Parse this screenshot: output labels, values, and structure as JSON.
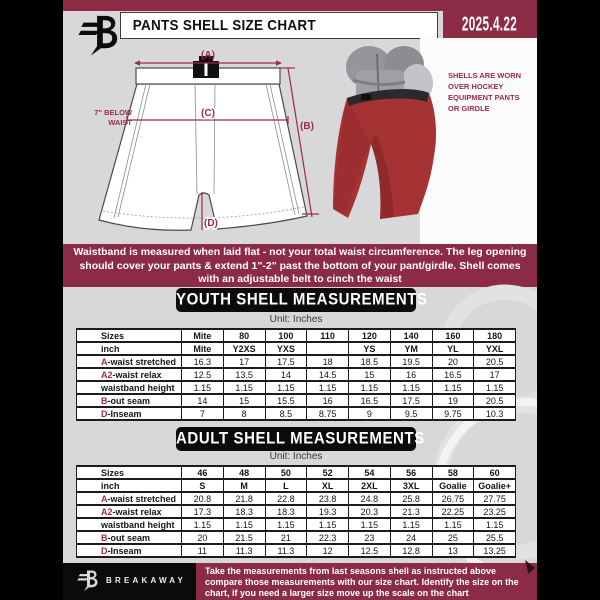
{
  "colors": {
    "maroon": "#8c2b45",
    "label_accent": "#9c2b45",
    "page_bg": "#d8d8da",
    "banner_black": "#0b0b0b",
    "shell_red": "#a53334"
  },
  "header": {
    "title": "PANTS SHELL SIZE CHART",
    "date": "2025.4.22"
  },
  "diagram": {
    "label_a": "(A)",
    "label_b": "(B)",
    "label_c": "(C)",
    "label_d": "(D)",
    "waist_note_line1": "7\" BELOW",
    "waist_note_line2": "WAIST",
    "caption_line1": "SHELLS ARE WORN",
    "caption_line2": "OVER HOCKEY",
    "caption_line3": "EQUIPMENT PANTS",
    "caption_line4": "OR GIRDLE"
  },
  "notice": "Waistband is measured when laid flat - not your total waist circumference. The leg opening should cover your pants & extend 1\"-2\" past the bottom of your pant/girdle. Shell comes with an adjustable belt to cinch the waist",
  "youth": {
    "title": "YOUTH SHELL MEASUREMENTS",
    "unit": "Unit: Inches",
    "rows": [
      {
        "prefix": "",
        "label": "Sizes",
        "bold": true,
        "values": [
          "Mite",
          "80",
          "100",
          "110",
          "120",
          "140",
          "160",
          "180"
        ]
      },
      {
        "prefix": "",
        "label": "inch",
        "bold": true,
        "values": [
          "Mite",
          "Y2XS",
          "YXS",
          "",
          "YS",
          "YM",
          "YL",
          "YXL"
        ]
      },
      {
        "prefix": "A",
        "label": "-waist stretched",
        "bold": false,
        "values": [
          "16.3",
          "17",
          "17.5",
          "18",
          "18.5",
          "19.5",
          "20",
          "20.5"
        ]
      },
      {
        "prefix": "A2",
        "label": "-waist relax",
        "bold": false,
        "values": [
          "12.5",
          "13.5",
          "14",
          "14.5",
          "15",
          "16",
          "16.5",
          "17"
        ]
      },
      {
        "prefix": "",
        "label": "waistband height",
        "bold": false,
        "values": [
          "1.15",
          "1.15",
          "1.15",
          "1.15",
          "1.15",
          "1.15",
          "1.15",
          "1.15"
        ]
      },
      {
        "prefix": "B",
        "label": "-out seam",
        "bold": false,
        "values": [
          "14",
          "15",
          "15.5",
          "16",
          "16.5",
          "17.5",
          "19",
          "20.5"
        ]
      },
      {
        "prefix": "D",
        "label": "-Inseam",
        "bold": false,
        "values": [
          "7",
          "8",
          "8.5",
          "8.75",
          "9",
          "9.5",
          "9.75",
          "10.3"
        ]
      }
    ]
  },
  "adult": {
    "title": "ADULT SHELL MEASUREMENTS",
    "unit": "Unit: Inches",
    "rows": [
      {
        "prefix": "",
        "label": "Sizes",
        "bold": true,
        "values": [
          "46",
          "48",
          "50",
          "52",
          "54",
          "56",
          "58",
          "60"
        ]
      },
      {
        "prefix": "",
        "label": "inch",
        "bold": true,
        "values": [
          "S",
          "M",
          "L",
          "XL",
          "2XL",
          "3XL",
          "Goalie",
          "Goalie+"
        ]
      },
      {
        "prefix": "A",
        "label": "-waist stretched",
        "bold": false,
        "values": [
          "20.8",
          "21.8",
          "22.8",
          "23.8",
          "24.8",
          "25.8",
          "26.75",
          "27.75"
        ]
      },
      {
        "prefix": "A2",
        "label": "-waist relax",
        "bold": false,
        "values": [
          "17.3",
          "18.3",
          "18.3",
          "19.3",
          "20.3",
          "21.3",
          "22.25",
          "23.25"
        ]
      },
      {
        "prefix": "",
        "label": "waistband height",
        "bold": false,
        "values": [
          "1.15",
          "1.15",
          "1.15",
          "1.15",
          "1.15",
          "1.15",
          "1.15",
          "1.15"
        ]
      },
      {
        "prefix": "B",
        "label": "-out seam",
        "bold": false,
        "values": [
          "20",
          "21.5",
          "21",
          "22.3",
          "23",
          "24",
          "25",
          "25.5"
        ]
      },
      {
        "prefix": "D",
        "label": "-Inseam",
        "bold": false,
        "values": [
          "11",
          "11.3",
          "11.3",
          "12",
          "12.5",
          "12.8",
          "13",
          "13.25"
        ]
      }
    ]
  },
  "footer": {
    "brand": "BREAKAWAY",
    "note": "Take the measurements from last seasons shell as instructed above compare those measurements with our size chart. Identify the size on the chart, if you need a larger size move up the scale on the chart"
  }
}
